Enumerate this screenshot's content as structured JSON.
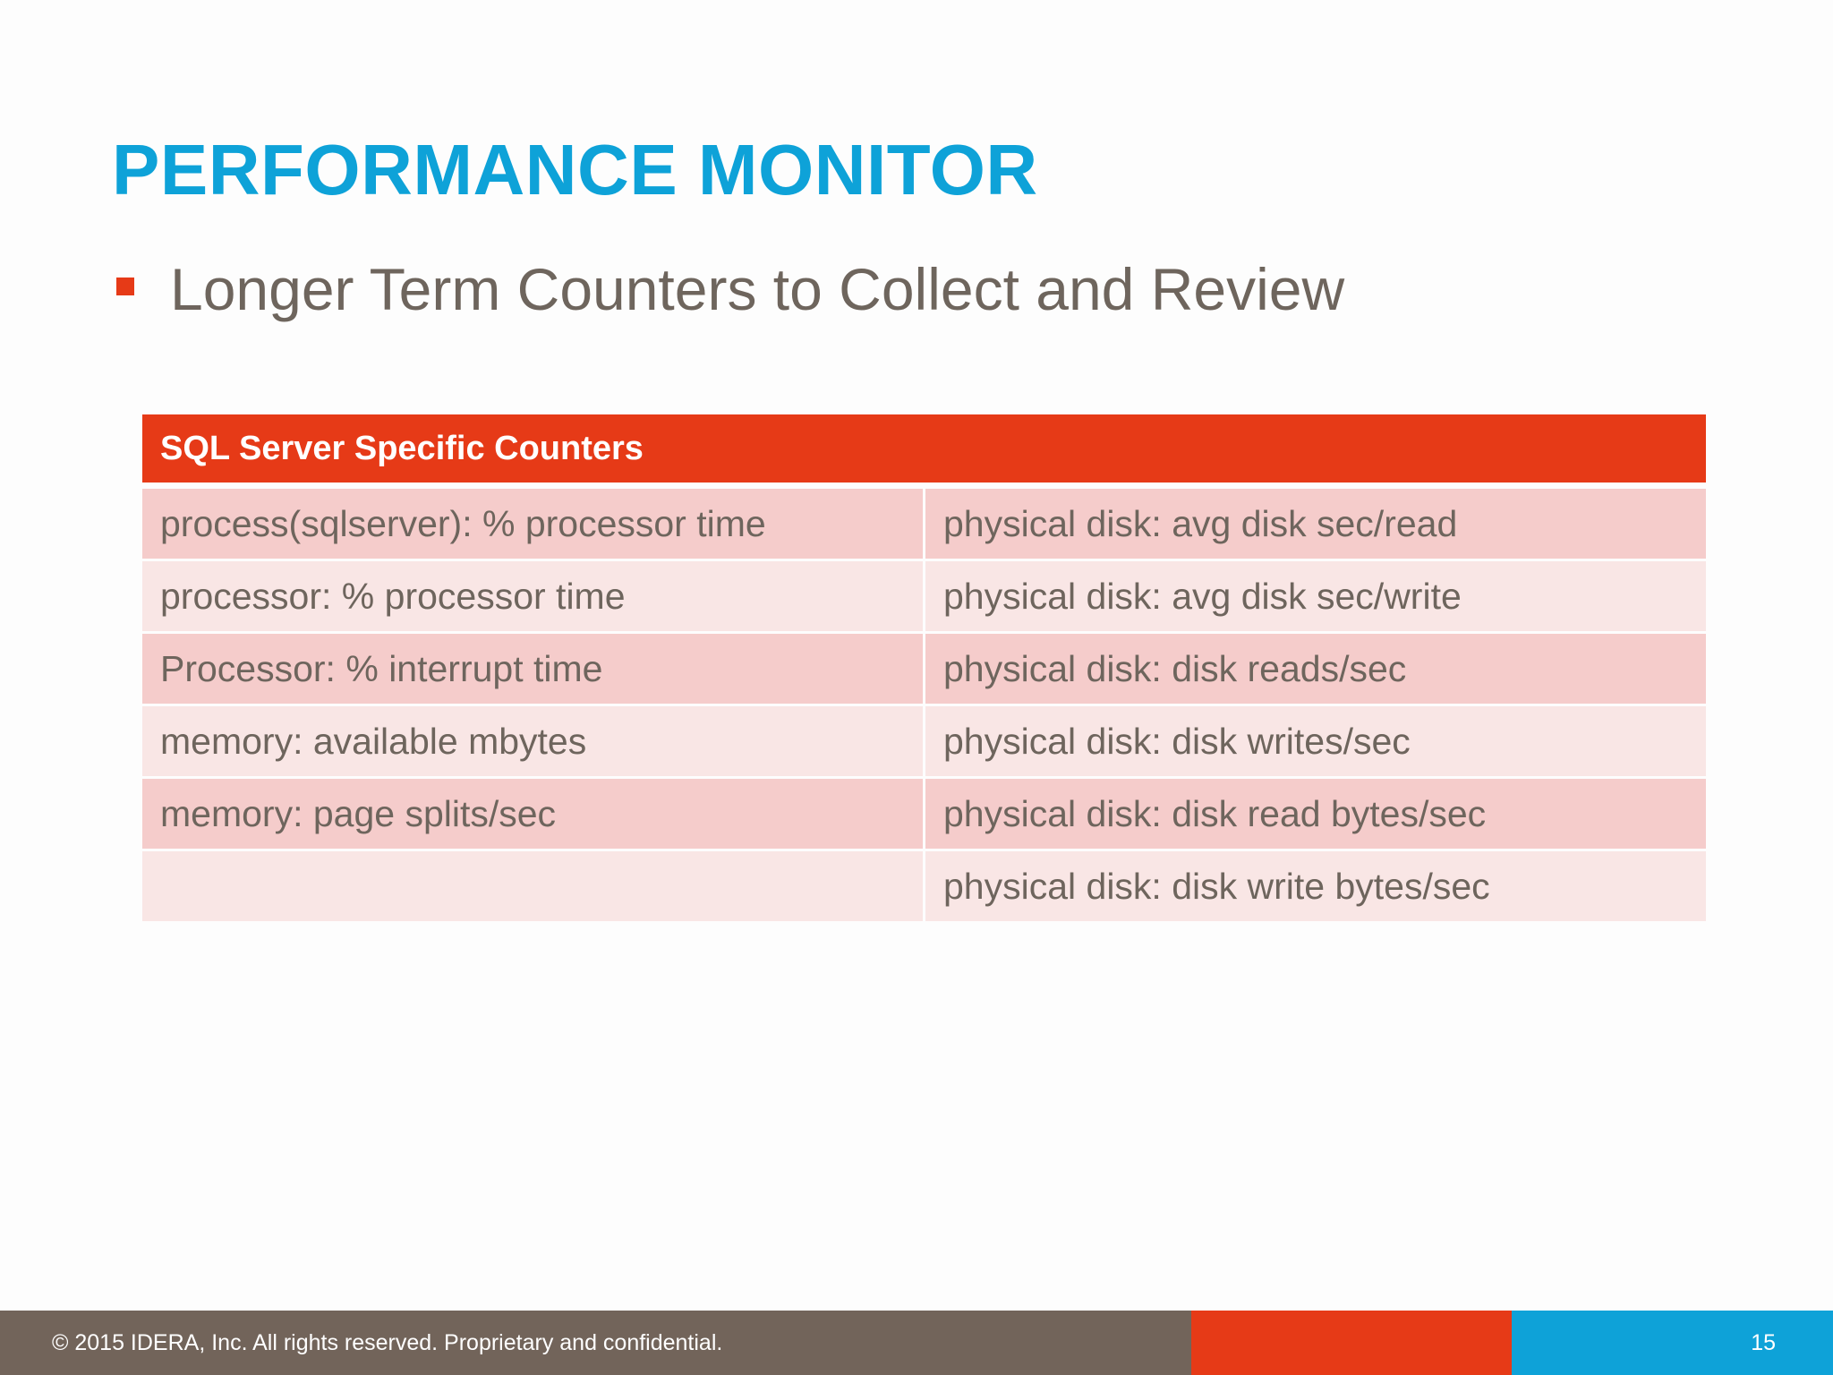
{
  "slide": {
    "title": "PERFORMANCE MONITOR",
    "bullet": "Longer Term Counters to Collect and Review"
  },
  "table": {
    "header": "SQL Server Specific Counters",
    "rows": [
      {
        "left": "process(sqlserver): % processor time",
        "right": "physical disk: avg disk sec/read"
      },
      {
        "left": "processor: % processor time",
        "right": "physical disk: avg disk sec/write"
      },
      {
        "left": "Processor: % interrupt time",
        "right": "physical disk: disk reads/sec"
      },
      {
        "left": "memory: available mbytes",
        "right": "physical disk: disk writes/sec"
      },
      {
        "left": "memory: page splits/sec",
        "right": "physical disk: disk read bytes/sec"
      },
      {
        "left": "",
        "right": "physical disk: disk write bytes/sec"
      }
    ]
  },
  "footer": {
    "copyright": "© 2015 IDERA, Inc. All rights reserved. Proprietary and confidential.",
    "page_number": "15"
  },
  "colors": {
    "title": "#0ea2d8",
    "accent_red": "#e63a17",
    "text_gray": "#6e655d",
    "row_dark": "#f5cccb",
    "row_light": "#f9e6e5",
    "footer_gray": "#72645a",
    "footer_blue": "#0ea2d8"
  }
}
